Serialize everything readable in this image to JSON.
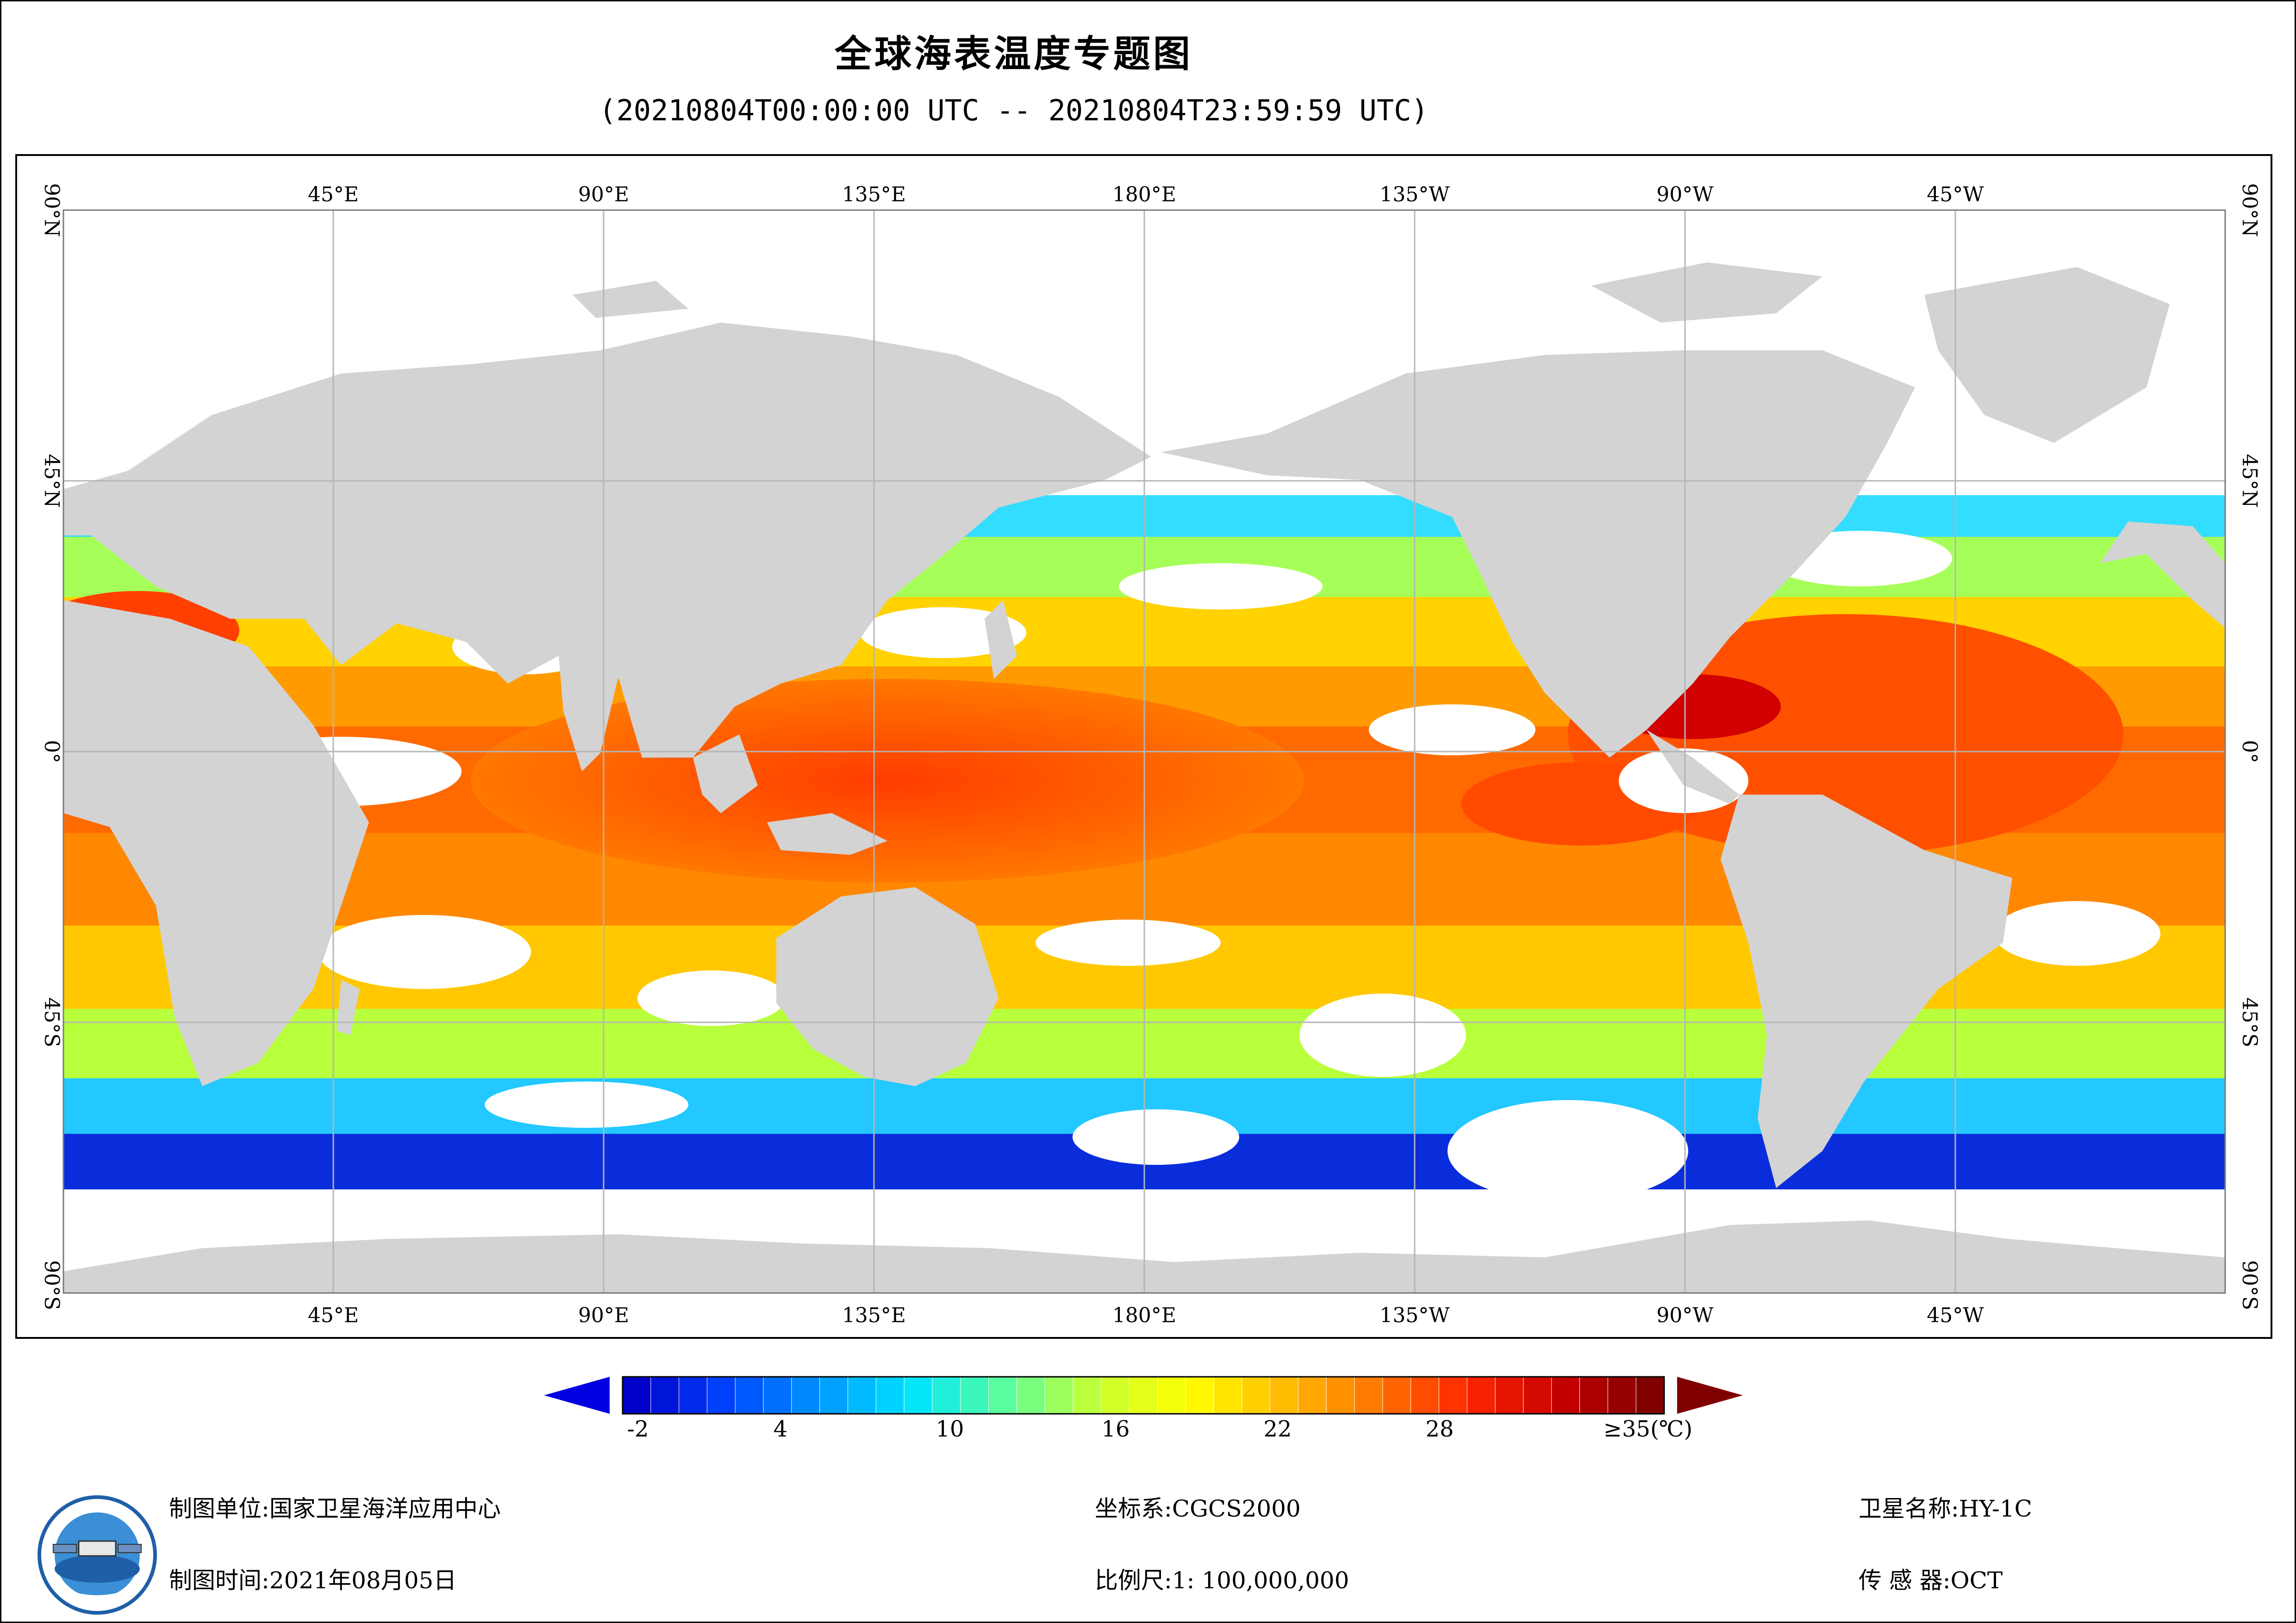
{
  "header": {
    "title": "全球海表温度专题图",
    "time_range": "(20210804T00:00:00 UTC -- 20210804T23:59:59 UTC)"
  },
  "map": {
    "projection": "equirectangular, centered at 180°",
    "top_lon_labels": [
      "45°E",
      "90°E",
      "135°E",
      "180°E",
      "135°W",
      "90°W",
      "45°W"
    ],
    "bottom_lon_labels": [
      "45°E",
      "90°E",
      "135°E",
      "180°E",
      "135°W",
      "90°W",
      "45°W"
    ],
    "lat_labels": [
      "90°N",
      "45°N",
      "0°",
      "45°S",
      "90°S"
    ],
    "land_color": "#d3d3d3",
    "no_data_color": "#ffffff",
    "grid_color": "#b5b5b5"
  },
  "colorbar": {
    "tick_labels": [
      "-2",
      "4",
      "10",
      "16",
      "22",
      "28",
      "≥35(℃)"
    ],
    "min_arrow_color": "#0000e0",
    "max_arrow_color": "#800000",
    "stops": [
      "#0000c8",
      "#0046ff",
      "#0096ff",
      "#00e6ff",
      "#5aff9a",
      "#c8ff32",
      "#ffff00",
      "#ffbe00",
      "#ff7800",
      "#ff2800",
      "#c80000",
      "#800000"
    ]
  },
  "footer": {
    "producer_label": "制图单位:",
    "producer_value": "国家卫星海洋应用中心",
    "date_label": "制图时间:",
    "date_value": "2021年08月05日",
    "crs_label": "坐标系:",
    "crs_value": "CGCS2000",
    "scale_label": "比例尺:",
    "scale_value": "1: 100,000,000",
    "satellite_label": "卫星名称:",
    "satellite_value": "HY-1C",
    "sensor_label": "传 感 器:",
    "sensor_value": "OCT"
  }
}
